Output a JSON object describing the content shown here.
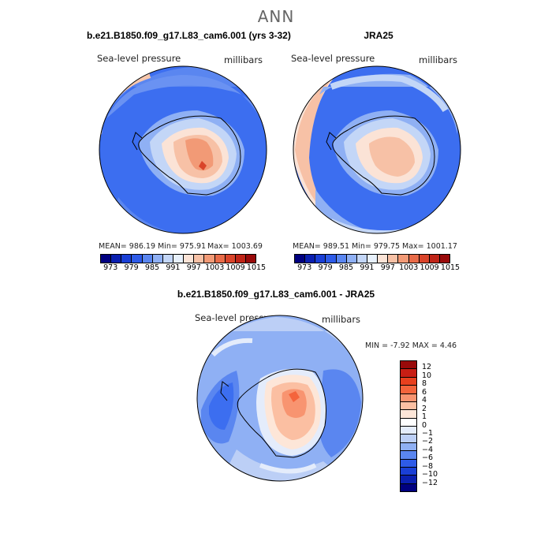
{
  "title": "ANN",
  "panels": [
    {
      "title": "b.e21.B1850.f09_g17.L83_cam6.001 (yrs 3-32)",
      "variable": "Sea-level pressure",
      "units": "millibars",
      "mean_label": "MEAN= 986.19",
      "min_label": "Min= 975.91",
      "max_label": "Max= 1003.69"
    },
    {
      "title": "JRA25",
      "variable": "Sea-level pressure",
      "units": "millibars",
      "mean_label": "MEAN= 989.51",
      "min_label": "Min= 979.75",
      "max_label": "Max= 1001.17"
    }
  ],
  "diff_panel": {
    "title": "b.e21.B1850.f09_g17.L83_cam6.001 - JRA25",
    "variable": "Sea-level pressure",
    "units": "millibars",
    "minmax_label": "MIN =  -7.92 MAX =   4.46"
  },
  "colorbar": {
    "colors": [
      "#000080",
      "#0a1fb0",
      "#1a3fd6",
      "#2e5be8",
      "#5a86f0",
      "#8fb0f4",
      "#c3d6f7",
      "#e7f0fb",
      "#fbe3d6",
      "#f7c1a6",
      "#f29a76",
      "#e86b48",
      "#d9442a",
      "#bf2417",
      "#990a0a"
    ],
    "tick_labels": [
      "973",
      "979",
      "985",
      "991",
      "997",
      "1003",
      "1009",
      "1015"
    ]
  },
  "diff_colorbar": {
    "colors": [
      "#990a0a",
      "#c81e14",
      "#e8401e",
      "#f4643c",
      "#f89470",
      "#fbbfa2",
      "#fde6d8",
      "#ffffff",
      "#e4ecfb",
      "#bccff6",
      "#8fb0f4",
      "#5a86f0",
      "#2e5be8",
      "#1a3fd6",
      "#0a1fb0",
      "#000080"
    ],
    "tick_labels": [
      "12",
      "10",
      "8",
      "6",
      "4",
      "2",
      "1",
      "0",
      "−1",
      "−2",
      "−4",
      "−6",
      "−8",
      "−10",
      "−12"
    ]
  }
}
